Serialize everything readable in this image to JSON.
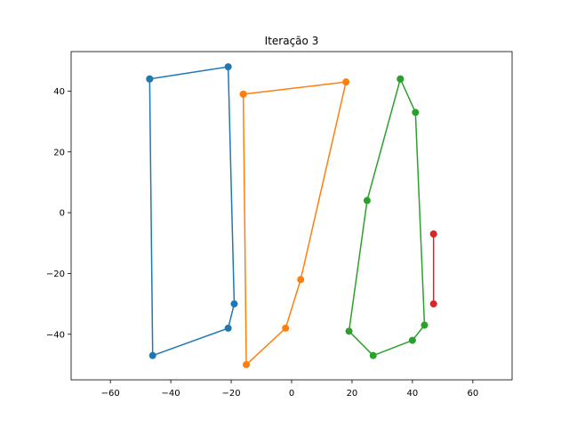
{
  "chart_data": {
    "type": "line",
    "title": "Iteração 3",
    "xlabel": "",
    "ylabel": "",
    "xlim": [
      -73,
      73
    ],
    "ylim": [
      -55,
      53
    ],
    "xticks": [
      -60,
      -40,
      -20,
      0,
      20,
      40,
      60
    ],
    "yticks": [
      -40,
      -20,
      0,
      20,
      40
    ],
    "grid": false,
    "legend": "none",
    "series": [
      {
        "color": "#1f77b4",
        "points": [
          [
            -47,
            44
          ],
          [
            -21,
            48
          ],
          [
            -19,
            -30
          ],
          [
            -21,
            -38
          ],
          [
            -46,
            -47
          ],
          [
            -47,
            44
          ]
        ]
      },
      {
        "color": "#ff7f0e",
        "points": [
          [
            -16,
            39
          ],
          [
            18,
            43
          ],
          [
            3,
            -22
          ],
          [
            -2,
            -38
          ],
          [
            -15,
            -50
          ],
          [
            -16,
            39
          ]
        ]
      },
      {
        "color": "#2ca02c",
        "points": [
          [
            36,
            44
          ],
          [
            41,
            33
          ],
          [
            44,
            -37
          ],
          [
            40,
            -42
          ],
          [
            27,
            -47
          ],
          [
            19,
            -39
          ],
          [
            25,
            4
          ],
          [
            36,
            44
          ]
        ]
      },
      {
        "color": "#d62728",
        "points": [
          [
            47,
            -7
          ],
          [
            47,
            -30
          ]
        ]
      }
    ]
  }
}
